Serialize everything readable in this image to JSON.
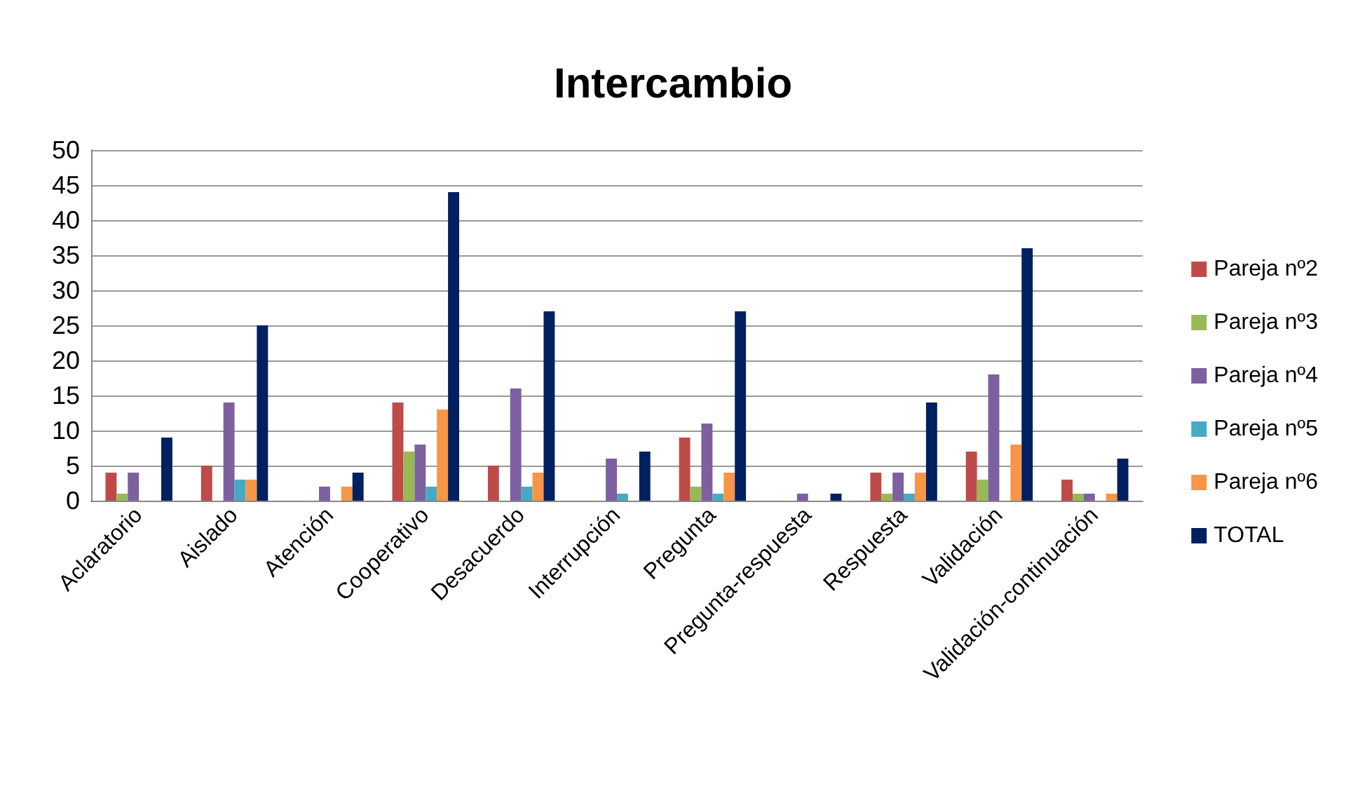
{
  "chart_data": {
    "type": "bar",
    "title": "Intercambio",
    "categories": [
      "Aclaratorio",
      "Aislado",
      "Atención",
      "Cooperativo",
      "Desacuerdo",
      "Interrupción",
      "Pregunta",
      "Pregunta-respuesta",
      "Respuesta",
      "Validación",
      "Validación-continuación"
    ],
    "series": [
      {
        "name": "Pareja nº2",
        "color": "#be4b48",
        "values": [
          4,
          5,
          0,
          14,
          5,
          0,
          9,
          0,
          4,
          7,
          3
        ]
      },
      {
        "name": "Pareja nº3",
        "color": "#98b954",
        "values": [
          1,
          0,
          0,
          7,
          0,
          0,
          2,
          0,
          1,
          3,
          1
        ]
      },
      {
        "name": "Pareja nº4",
        "color": "#7d60a0",
        "values": [
          4,
          14,
          2,
          8,
          16,
          6,
          11,
          1,
          4,
          18,
          1
        ]
      },
      {
        "name": "Pareja nº5",
        "color": "#46aac5",
        "values": [
          0,
          3,
          0,
          2,
          2,
          1,
          1,
          0,
          1,
          0,
          0
        ]
      },
      {
        "name": "Pareja nº6",
        "color": "#f79646",
        "values": [
          0,
          3,
          2,
          13,
          4,
          0,
          4,
          0,
          4,
          8,
          1
        ]
      },
      {
        "name": "TOTAL",
        "color": "#002060",
        "values": [
          9,
          25,
          4,
          44,
          27,
          7,
          27,
          1,
          14,
          36,
          6
        ]
      }
    ],
    "ylim": [
      0,
      50
    ],
    "yticks": [
      0,
      5,
      10,
      15,
      20,
      25,
      30,
      35,
      40,
      45,
      50
    ],
    "grid": "y",
    "legend": "right"
  }
}
